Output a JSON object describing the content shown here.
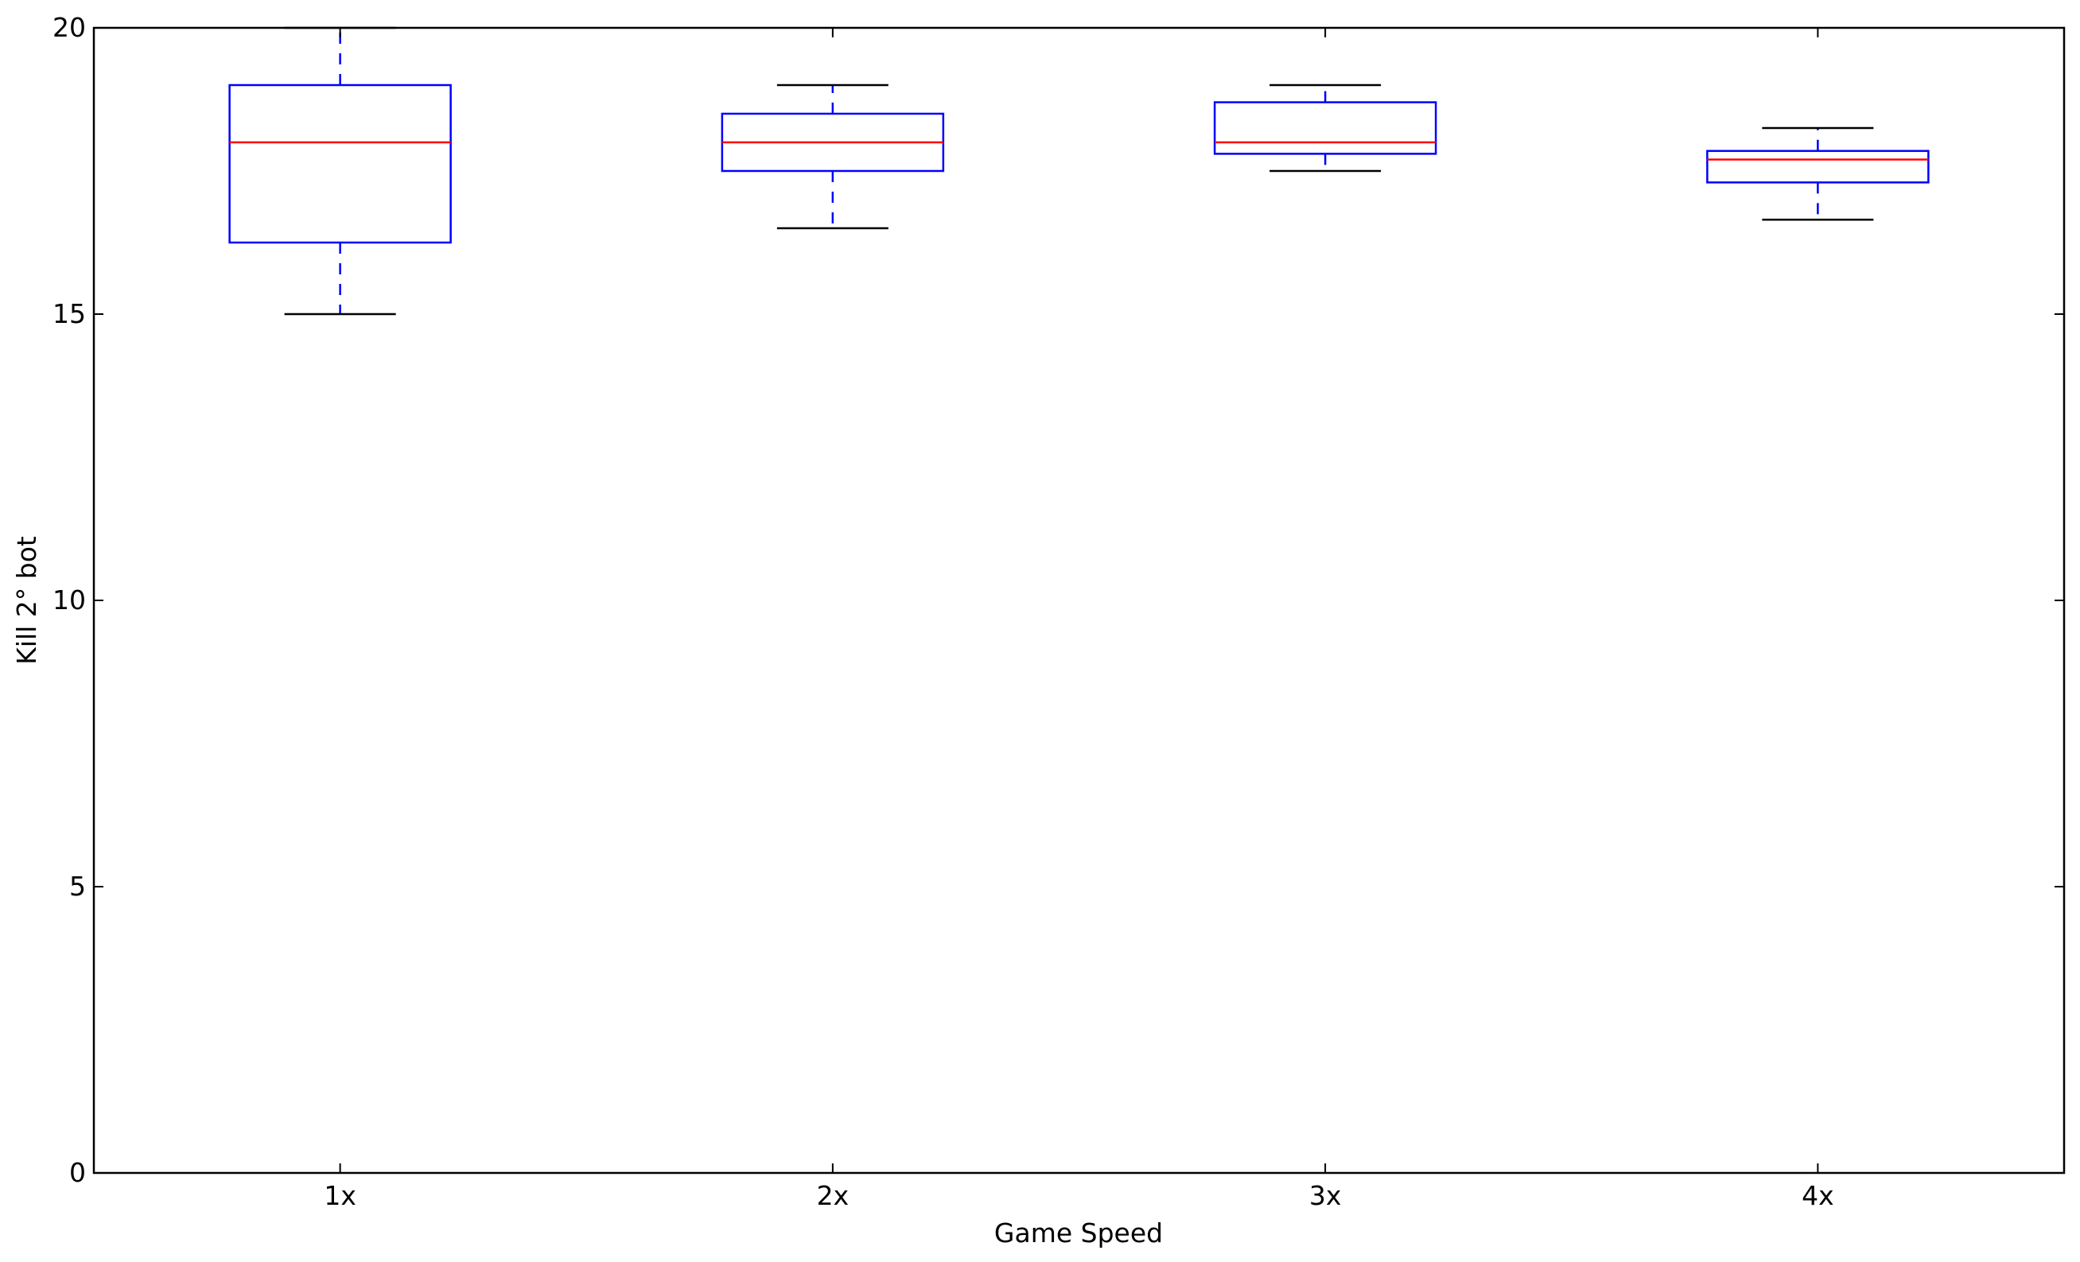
{
  "chart_data": {
    "type": "box",
    "title": "",
    "xlabel": "Game Speed",
    "ylabel": "Kill 2° bot",
    "ylim": [
      0,
      20
    ],
    "yticks": [
      0,
      5,
      10,
      15,
      20
    ],
    "ytick_labels": [
      "0",
      "5",
      "10",
      "15",
      "20"
    ],
    "categories": [
      "1x",
      "2x",
      "3x",
      "4x"
    ],
    "boxes": [
      {
        "category": "1x",
        "whisker_low": 15.0,
        "q1": 16.25,
        "median": 18.0,
        "q3": 19.0,
        "whisker_high": 20.0
      },
      {
        "category": "2x",
        "whisker_low": 16.5,
        "q1": 17.5,
        "median": 18.0,
        "q3": 18.5,
        "whisker_high": 19.0
      },
      {
        "category": "3x",
        "whisker_low": 17.5,
        "q1": 17.8,
        "median": 18.0,
        "q3": 18.7,
        "whisker_high": 19.0
      },
      {
        "category": "4x",
        "whisker_low": 16.65,
        "q1": 17.3,
        "median": 17.7,
        "q3": 17.85,
        "whisker_high": 18.25
      }
    ],
    "grid": false,
    "colors": {
      "box": "#0000ff",
      "median": "#ff0000",
      "cap": "#000000",
      "whisker": "#0000ff"
    }
  }
}
